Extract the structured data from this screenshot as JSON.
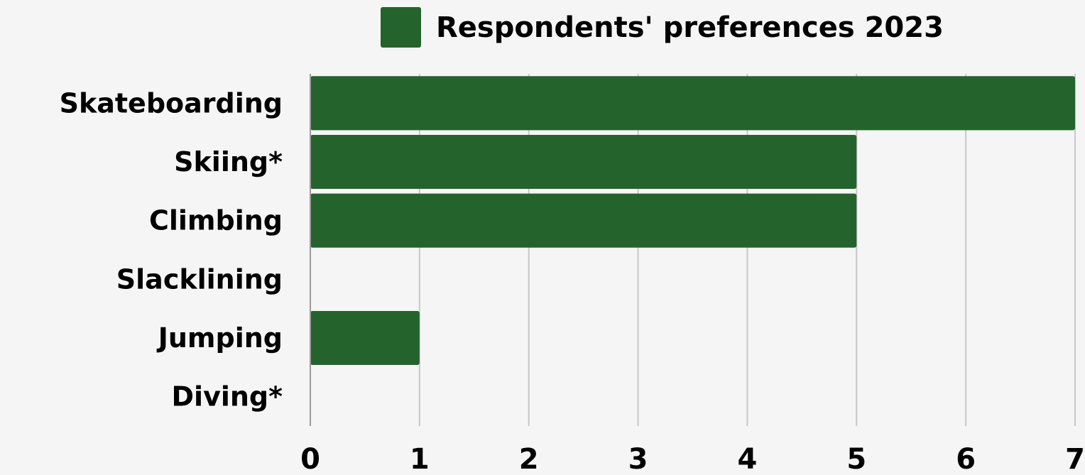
{
  "chart_data": {
    "type": "bar",
    "orientation": "horizontal",
    "categories": [
      "Skateboarding",
      "Skiing*",
      "Climbing",
      "Slacklining",
      "Jumping",
      "Diving*"
    ],
    "series": [
      {
        "name": "Respondents' preferences 2023",
        "values": [
          7,
          5,
          5,
          0,
          1,
          0
        ],
        "color": "#25632d"
      }
    ],
    "xlim": [
      0,
      7
    ],
    "x_ticks": [
      "0",
      "1",
      "2",
      "3",
      "4",
      "5",
      "6",
      "7"
    ],
    "grid": true,
    "legend_position": "top-center",
    "title": "",
    "xlabel": "",
    "ylabel": ""
  }
}
